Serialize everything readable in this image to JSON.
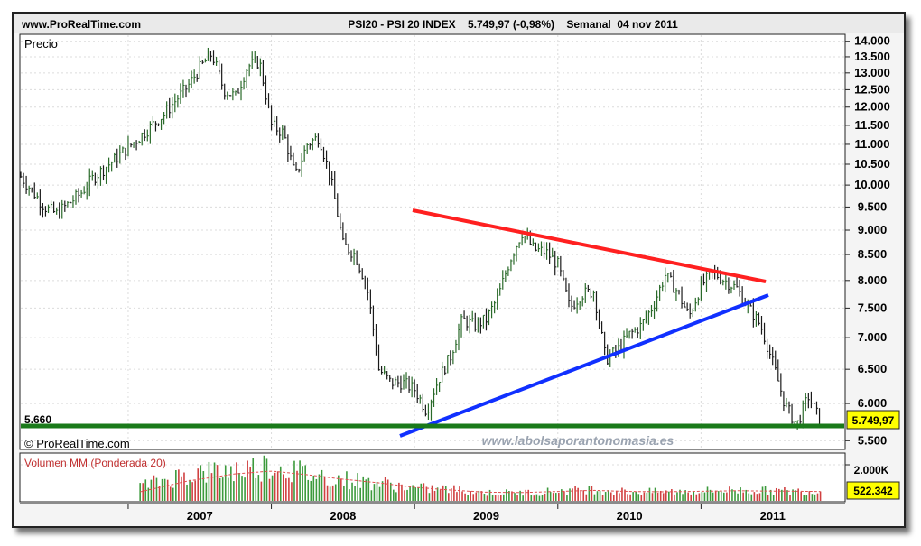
{
  "header": {
    "site": "www.ProRealTime.com",
    "instrument": "PSI20 - PSI 20 INDEX    5.749,97 (-0,98%)    Semanal  04 nov 2011"
  },
  "price_panel": {
    "label": "Precio",
    "support_label": "5.660",
    "last_value": "5.749,97",
    "copyright": "© ProRealTime.com",
    "watermark": "www.labolsaporantonomasia.es"
  },
  "volume_panel": {
    "label": "Volumen MM (Ponderada 20)",
    "tick_label": "2.000K",
    "last_value": "522.342"
  },
  "colors": {
    "up_bar": "#3c9a3c",
    "down_bar": "#d04040",
    "support_line": "#1a7a1a",
    "resistance_line": "#ff2020",
    "trend_line": "#1030ff",
    "value_badge": "#ffff00"
  },
  "chart_data": [
    {
      "type": "line",
      "title": "PSI20 - PSI 20 INDEX",
      "subtitle": "Semanal 04 nov 2011",
      "ylabel": "Precio",
      "ylim": [
        5400,
        14200
      ],
      "y_scale": "log",
      "grid": true,
      "x_ticks": [
        "2007",
        "2008",
        "2009",
        "2010",
        "2011"
      ],
      "y_ticks": [
        "14.000",
        "13.500",
        "13.000",
        "12.500",
        "12.000",
        "11.500",
        "11.000",
        "10.500",
        "10.000",
        "9.500",
        "9.000",
        "8.500",
        "8.000",
        "7.500",
        "7.000",
        "6.500",
        "6.000",
        "5.500"
      ],
      "series": [
        {
          "x": [
            "2006-04",
            "2006-06",
            "2006-07",
            "2006-09",
            "2006-10",
            "2006-12",
            "2007-02",
            "2007-04",
            "2007-05",
            "2007-06",
            "2007-07",
            "2007-08",
            "2007-09",
            "2007-10",
            "2007-11",
            "2007-12",
            "2008-01",
            "2008-02",
            "2008-03",
            "2008-04",
            "2008-05",
            "2008-06",
            "2008-07",
            "2008-08",
            "2008-09",
            "2008-10",
            "2008-11",
            "2008-12",
            "2009-01",
            "2009-02",
            "2009-03",
            "2009-04",
            "2009-05",
            "2009-06",
            "2009-07",
            "2009-08",
            "2009-09",
            "2009-10",
            "2009-11",
            "2009-12",
            "2010-01",
            "2010-02",
            "2010-03",
            "2010-04",
            "2010-05",
            "2010-06",
            "2010-07",
            "2010-08",
            "2010-09",
            "2010-10",
            "2010-11",
            "2010-12",
            "2011-01",
            "2011-02",
            "2011-03",
            "2011-04",
            "2011-05",
            "2011-06",
            "2011-07",
            "2011-08",
            "2011-09",
            "2011-10",
            "2011-11"
          ],
          "values": [
            10200,
            9500,
            9350,
            9800,
            10150,
            10650,
            11200,
            11800,
            12200,
            12600,
            13150,
            13600,
            12500,
            12300,
            13200,
            13350,
            11500,
            11300,
            10200,
            11000,
            11200,
            10100,
            8700,
            8500,
            7900,
            6500,
            6300,
            6300,
            6200,
            5900,
            6350,
            6700,
            7300,
            7200,
            7300,
            7700,
            8400,
            8950,
            8600,
            8550,
            8300,
            7500,
            7750,
            7800,
            6650,
            6800,
            7050,
            7200,
            7550,
            8100,
            7800,
            7350,
            7900,
            8150,
            8000,
            7850,
            7500,
            7200,
            6600,
            6000,
            5700,
            6100,
            5750
          ]
        }
      ]
    },
    {
      "type": "bar",
      "title": "Volumen MM (Ponderada 20)",
      "ylim": [
        0,
        2600
      ],
      "unit": "K",
      "x": [
        "2007-02",
        "2007-06",
        "2007-10",
        "2008-01",
        "2008-04",
        "2008-07",
        "2008-10",
        "2009-01",
        "2009-04",
        "2009-07",
        "2009-10",
        "2010-01",
        "2010-04",
        "2010-07",
        "2010-10",
        "2011-01",
        "2011-04",
        "2011-07",
        "2011-11"
      ],
      "values": [
        800,
        1500,
        1700,
        2000,
        1500,
        1200,
        1000,
        700,
        650,
        450,
        450,
        550,
        650,
        500,
        500,
        550,
        600,
        550,
        522
      ],
      "moving_average": [
        500,
        1100,
        1500,
        1650,
        1450,
        1200,
        1000,
        750,
        600,
        480,
        460,
        520,
        580,
        520,
        500,
        530,
        560,
        540,
        520
      ]
    }
  ]
}
